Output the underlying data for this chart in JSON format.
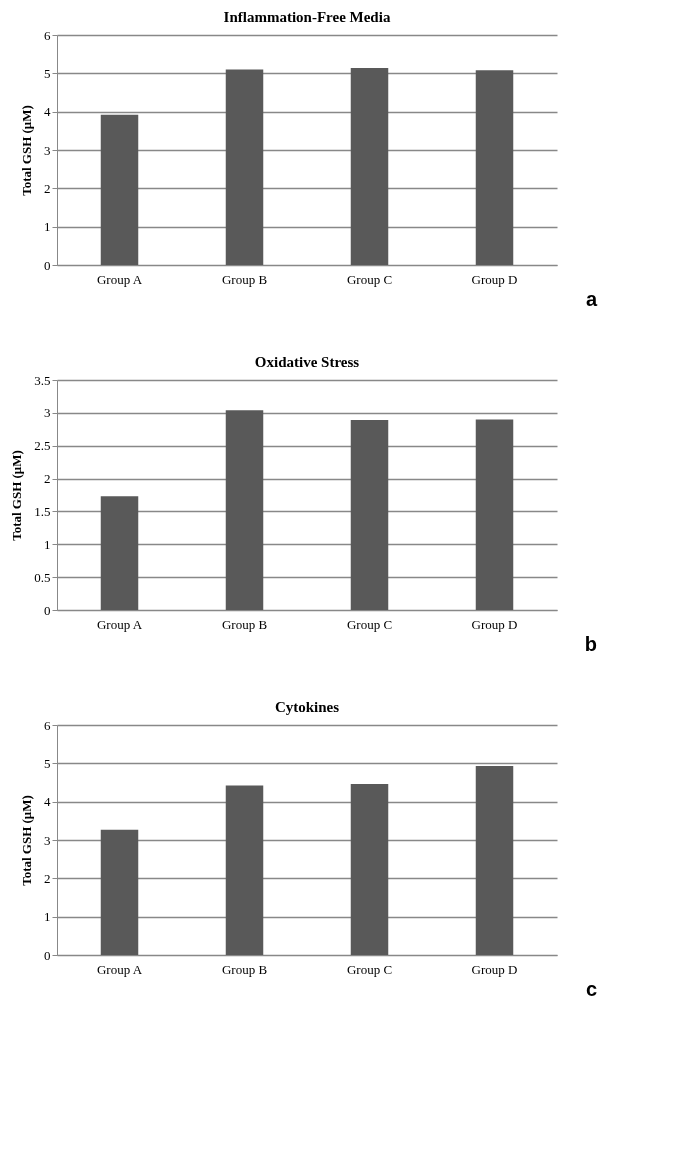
{
  "chart_data": [
    {
      "type": "bar",
      "title": "Inflammation-Free Media",
      "ylabel": "Total GSH (μM)",
      "categories": [
        "Group A",
        "Group B",
        "Group C",
        "Group D"
      ],
      "values": [
        3.92,
        5.1,
        5.14,
        5.08
      ],
      "color": "#595959",
      "ylim": [
        0,
        6
      ],
      "yticks": [
        0,
        1,
        2,
        3,
        4,
        5,
        6
      ],
      "grid": "y",
      "annotations": [
        "a"
      ]
    },
    {
      "type": "bar",
      "title": "Oxidative Stress",
      "ylabel": "Total GSH (μM)",
      "categories": [
        "Group A",
        "Group B",
        "Group C",
        "Group D"
      ],
      "values": [
        1.73,
        3.04,
        2.89,
        2.9
      ],
      "color": "#595959",
      "ylim": [
        0,
        3.5
      ],
      "yticks": [
        0,
        0.5,
        1,
        1.5,
        2,
        2.5,
        3,
        3.5
      ],
      "grid": "y",
      "annotations": [
        "b"
      ]
    },
    {
      "type": "bar",
      "title": "Cytokines",
      "ylabel": "Total GSH (μM)",
      "categories": [
        "Group A",
        "Group B",
        "Group C",
        "Group D"
      ],
      "values": [
        3.27,
        4.42,
        4.46,
        4.93
      ],
      "color": "#595959",
      "ylim": [
        0,
        6
      ],
      "yticks": [
        0,
        1,
        2,
        3,
        4,
        5,
        6
      ],
      "grid": "y",
      "annotations": [
        "c"
      ]
    }
  ]
}
